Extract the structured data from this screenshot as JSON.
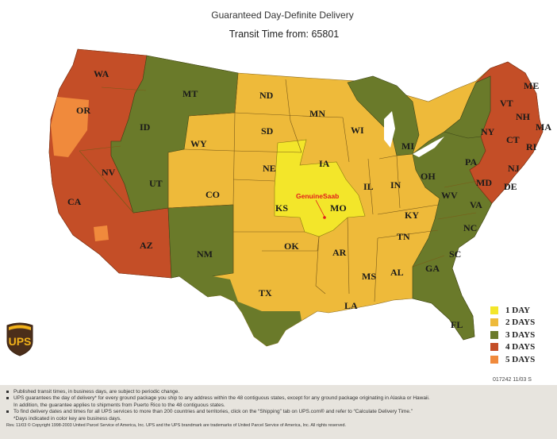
{
  "header": {
    "title": "Guaranteed Day-Definite Delivery",
    "subtitle": "Transit Time from: 65801"
  },
  "colors": {
    "1_day": "#f3e62a",
    "2_days": "#eeba3a",
    "3_days": "#6a7a2a",
    "4_days": "#c44e27",
    "5_days": "#f08a3c"
  },
  "map": {
    "origin_label": "GenuineSaab",
    "states": [
      {
        "abbr": "WA",
        "days": "4"
      },
      {
        "abbr": "OR",
        "days": "4"
      },
      {
        "abbr": "CA",
        "days": "4"
      },
      {
        "abbr": "NV",
        "days": "4"
      },
      {
        "abbr": "AZ",
        "days": "4"
      },
      {
        "abbr": "ID",
        "days": "3"
      },
      {
        "abbr": "MT",
        "days": "3"
      },
      {
        "abbr": "WY",
        "days": "2"
      },
      {
        "abbr": "UT",
        "days": "3"
      },
      {
        "abbr": "CO",
        "days": "2"
      },
      {
        "abbr": "NM",
        "days": "3"
      },
      {
        "abbr": "TX",
        "days": "2"
      },
      {
        "abbr": "ND",
        "days": "2"
      },
      {
        "abbr": "SD",
        "days": "2"
      },
      {
        "abbr": "NE",
        "days": "2"
      },
      {
        "abbr": "KS",
        "days": "1"
      },
      {
        "abbr": "OK",
        "days": "2"
      },
      {
        "abbr": "MN",
        "days": "2"
      },
      {
        "abbr": "IA",
        "days": "2"
      },
      {
        "abbr": "MO",
        "days": "1"
      },
      {
        "abbr": "AR",
        "days": "2"
      },
      {
        "abbr": "LA",
        "days": "2"
      },
      {
        "abbr": "WI",
        "days": "2"
      },
      {
        "abbr": "IL",
        "days": "2"
      },
      {
        "abbr": "MI",
        "days": "3"
      },
      {
        "abbr": "IN",
        "days": "2"
      },
      {
        "abbr": "OH",
        "days": "3"
      },
      {
        "abbr": "KY",
        "days": "2"
      },
      {
        "abbr": "TN",
        "days": "2"
      },
      {
        "abbr": "MS",
        "days": "2"
      },
      {
        "abbr": "AL",
        "days": "2"
      },
      {
        "abbr": "GA",
        "days": "3"
      },
      {
        "abbr": "FL",
        "days": "3"
      },
      {
        "abbr": "SC",
        "days": "3"
      },
      {
        "abbr": "NC",
        "days": "3"
      },
      {
        "abbr": "VA",
        "days": "3"
      },
      {
        "abbr": "WV",
        "days": "3"
      },
      {
        "abbr": "PA",
        "days": "3"
      },
      {
        "abbr": "NY",
        "days": "3"
      },
      {
        "abbr": "NJ",
        "days": "4"
      },
      {
        "abbr": "MD",
        "days": "4"
      },
      {
        "abbr": "DE",
        "days": "4"
      },
      {
        "abbr": "CT",
        "days": "4"
      },
      {
        "abbr": "RI",
        "days": "4"
      },
      {
        "abbr": "MA",
        "days": "4"
      },
      {
        "abbr": "VT",
        "days": "4"
      },
      {
        "abbr": "NH",
        "days": "4"
      },
      {
        "abbr": "ME",
        "days": "4"
      }
    ]
  },
  "legend": {
    "items": [
      {
        "label": "1 DAY",
        "color": "#f3e62a"
      },
      {
        "label": "2 DAYS",
        "color": "#eeba3a"
      },
      {
        "label": "3 DAYS",
        "color": "#6a7a2a"
      },
      {
        "label": "4 DAYS",
        "color": "#c44e27"
      },
      {
        "label": "5 DAYS",
        "color": "#f08a3c"
      }
    ]
  },
  "doc_code": "017242 11/03 S",
  "corner_mark": "2",
  "logo_text": "UPS",
  "notes": {
    "line1": "Published transit times, in business days, are subject to periodic change.",
    "line2": "UPS guarantees the day of delivery* for every ground package you ship to any address within the 48 contiguous states, except for any ground package originating in Alaska or Hawaii.",
    "line3": "In addition, the guarantee applies to shipments from Puerto Rico to the 48 contiguous states.",
    "line4": "To find delivery dates and times for all UPS services to more than 200 countries and territories, click on the “Shipping” tab on UPS.com® and refer to “Calculate Delivery Time.”",
    "line5": "*Days indicated in color key are business days.",
    "line6": "Rev. 11/03 © Copyright 1998-2003 United Parcel Service of America, Inc. UPS and the UPS brandmark are trademarks of United Parcel Service of America, Inc. All rights reserved."
  }
}
